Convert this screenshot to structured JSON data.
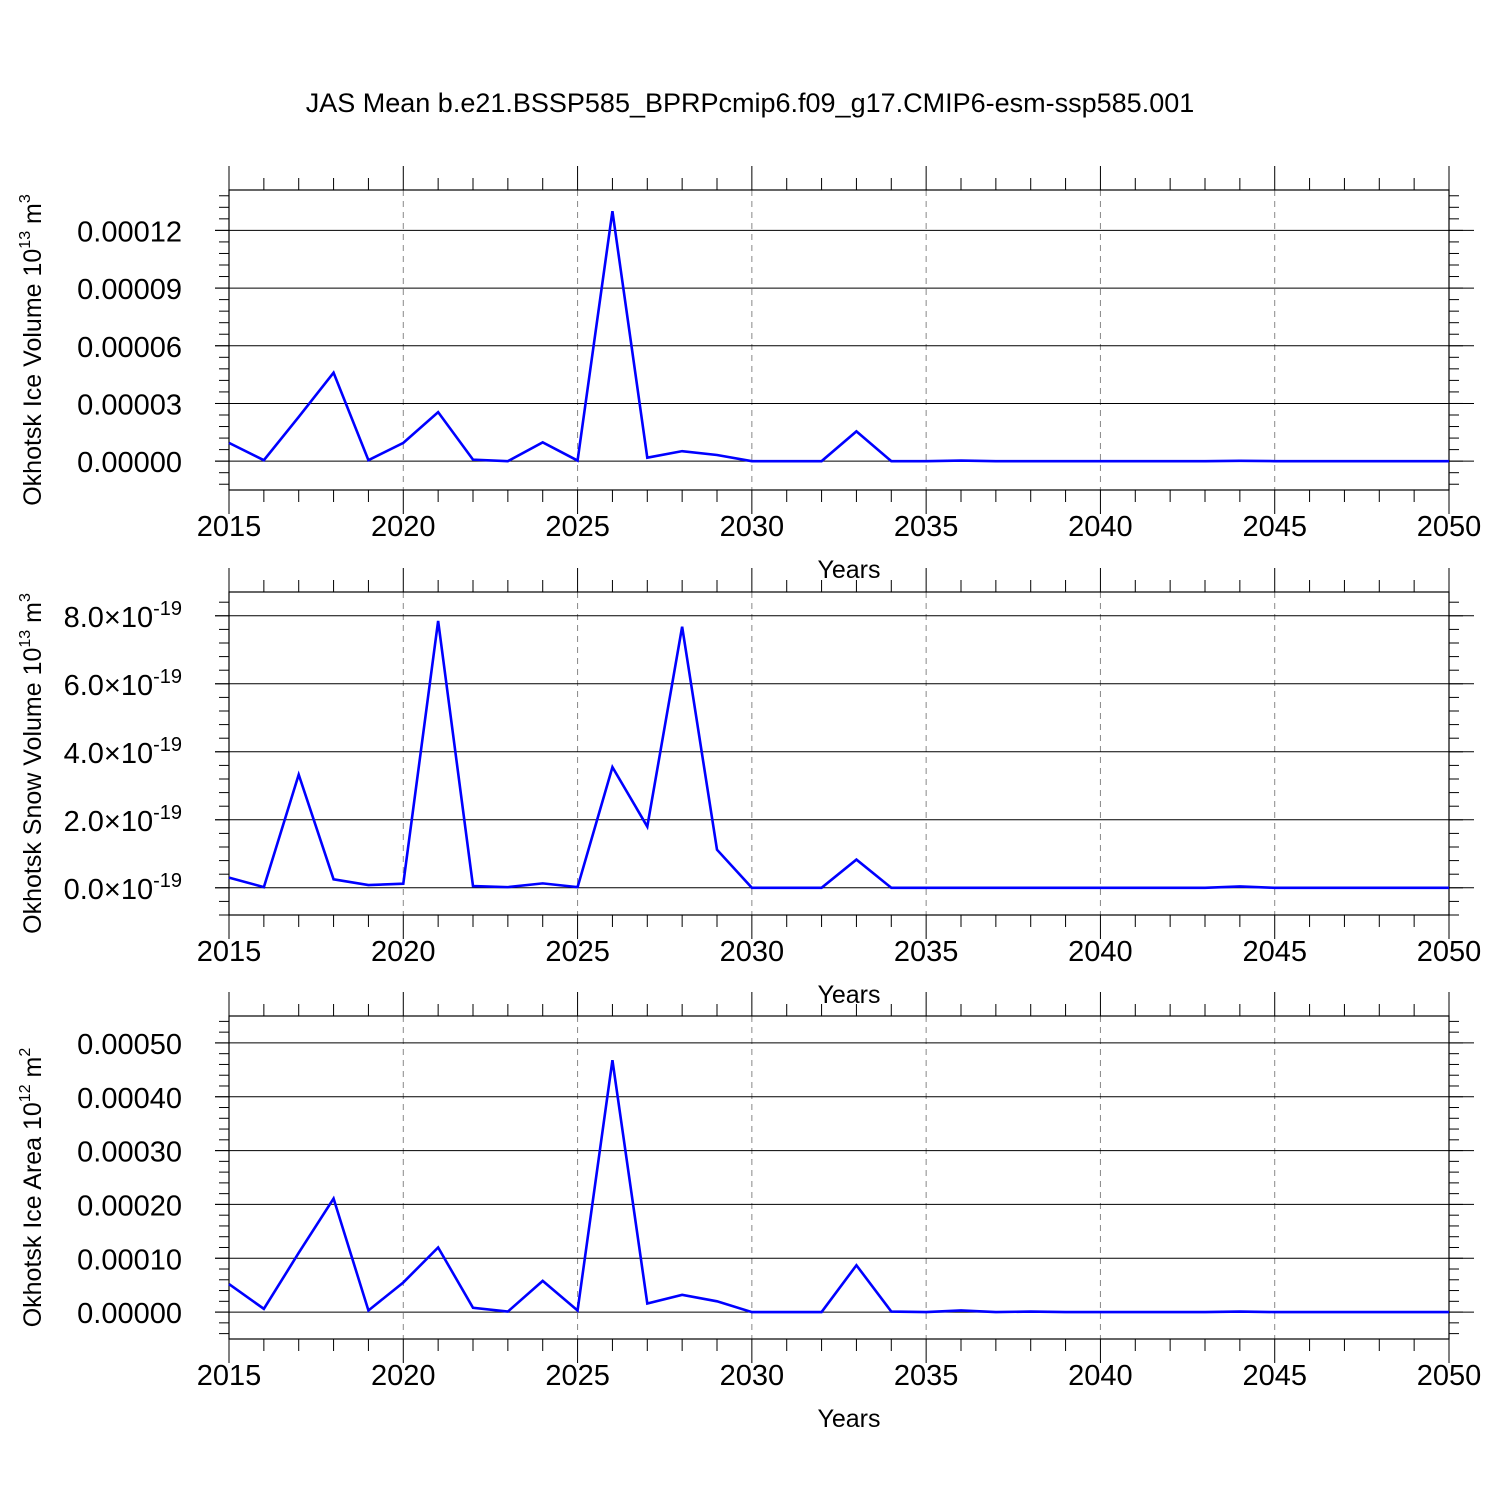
{
  "title": "JAS Mean b.e21.BSSP585_BPRPcmip6.f09_g17.CMIP6-esm-ssp585.001",
  "colors": {
    "line": "#0000ff",
    "axis": "#000000",
    "grid": "#888888"
  },
  "chart_data": [
    {
      "type": "line",
      "ylabel": "Okhotsk Ice Volume",
      "ylabel_unit_base": "10",
      "ylabel_unit_exp": "13",
      "ylabel_unit": "m",
      "ylabel_unit_pow": "3",
      "xlabel": "Years",
      "xlim": [
        2015,
        2050
      ],
      "ylim": [
        -1.5e-05,
        0.000141
      ],
      "xticks": [
        "2015",
        "2020",
        "2025",
        "2030",
        "2035",
        "2040",
        "2045",
        "2050"
      ],
      "yticks": [
        {
          "value": 0,
          "label": "0.00000"
        },
        {
          "value": 3e-05,
          "label": "0.00003"
        },
        {
          "value": 6e-05,
          "label": "0.00006"
        },
        {
          "value": 9e-05,
          "label": "0.00009"
        },
        {
          "value": 0.00012,
          "label": "0.00012"
        }
      ],
      "baseline": 0,
      "grid": "x-dashed",
      "x": [
        2015,
        2016,
        2017,
        2018,
        2019,
        2020,
        2021,
        2022,
        2023,
        2024,
        2025,
        2026,
        2027,
        2028,
        2029,
        2030,
        2031,
        2032,
        2033,
        2034,
        2035,
        2036,
        2037,
        2038,
        2039,
        2040,
        2041,
        2042,
        2043,
        2044,
        2045,
        2046,
        2047,
        2048,
        2049,
        2050
      ],
      "values": [
        9.5e-06,
        5e-07,
        2.3e-05,
        4.6e-05,
        5e-07,
        9.5e-06,
        2.55e-05,
        8e-07,
        0,
        9.8e-06,
        3e-07,
        0.00013,
        1.8e-06,
        5.2e-06,
        3.2e-06,
        0,
        0,
        0,
        1.55e-05,
        0,
        0,
        3e-07,
        0,
        0,
        0,
        0,
        0,
        0,
        0,
        2e-07,
        0,
        0,
        0,
        0,
        0,
        0
      ]
    },
    {
      "type": "line",
      "ylabel": "Okhotsk Snow Volume",
      "ylabel_unit_base": "10",
      "ylabel_unit_exp": "13",
      "ylabel_unit": "m",
      "ylabel_unit_pow": "3",
      "xlabel": "Years",
      "xlim": [
        2015,
        2050
      ],
      "ylim": [
        -0.8,
        8.7
      ],
      "y_scale_factor": "×10^-19",
      "xticks": [
        "2015",
        "2020",
        "2025",
        "2030",
        "2035",
        "2040",
        "2045",
        "2050"
      ],
      "yticks": [
        {
          "value": 0,
          "label": "0.0",
          "sci": "×10",
          "exp": "-19"
        },
        {
          "value": 2,
          "label": "2.0",
          "sci": "×10",
          "exp": "-19"
        },
        {
          "value": 4,
          "label": "4.0",
          "sci": "×10",
          "exp": "-19"
        },
        {
          "value": 6,
          "label": "6.0",
          "sci": "×10",
          "exp": "-19"
        },
        {
          "value": 8,
          "label": "8.0",
          "sci": "×10",
          "exp": "-19"
        }
      ],
      "baseline": 0,
      "grid": "x-dashed",
      "x": [
        2015,
        2016,
        2017,
        2018,
        2019,
        2020,
        2021,
        2022,
        2023,
        2024,
        2025,
        2026,
        2027,
        2028,
        2029,
        2030,
        2031,
        2032,
        2033,
        2034,
        2035,
        2036,
        2037,
        2038,
        2039,
        2040,
        2041,
        2042,
        2043,
        2044,
        2045,
        2046,
        2047,
        2048,
        2049,
        2050
      ],
      "values": [
        0.3,
        0.02,
        3.33,
        0.25,
        0.08,
        0.12,
        7.85,
        0.05,
        0.02,
        0.13,
        0.02,
        3.55,
        1.8,
        7.68,
        1.12,
        0,
        0,
        0,
        0.83,
        0,
        0,
        0,
        0,
        0,
        0,
        0,
        0,
        0,
        0,
        0.04,
        0,
        0,
        0,
        0,
        0,
        0
      ]
    },
    {
      "type": "line",
      "ylabel": "Okhotsk Ice Area",
      "ylabel_unit_base": "10",
      "ylabel_unit_exp": "12",
      "ylabel_unit": "m",
      "ylabel_unit_pow": "2",
      "xlabel": "Years",
      "xlim": [
        2015,
        2050
      ],
      "ylim": [
        -5e-05,
        0.00055
      ],
      "xticks": [
        "2015",
        "2020",
        "2025",
        "2030",
        "2035",
        "2040",
        "2045",
        "2050"
      ],
      "yticks": [
        {
          "value": 0,
          "label": "0.00000"
        },
        {
          "value": 0.0001,
          "label": "0.00010"
        },
        {
          "value": 0.0002,
          "label": "0.00020"
        },
        {
          "value": 0.0003,
          "label": "0.00030"
        },
        {
          "value": 0.0004,
          "label": "0.00040"
        },
        {
          "value": 0.0005,
          "label": "0.00050"
        }
      ],
      "baseline": 0,
      "grid": "x-dashed",
      "x": [
        2015,
        2016,
        2017,
        2018,
        2019,
        2020,
        2021,
        2022,
        2023,
        2024,
        2025,
        2026,
        2027,
        2028,
        2029,
        2030,
        2031,
        2032,
        2033,
        2034,
        2035,
        2036,
        2037,
        2038,
        2039,
        2040,
        2041,
        2042,
        2043,
        2044,
        2045,
        2046,
        2047,
        2048,
        2049,
        2050
      ],
      "values": [
        5.2e-05,
        6e-06,
        0.00011,
        0.000211,
        3e-06,
        5.5e-05,
        0.00012,
        8e-06,
        1e-06,
        5.8e-05,
        3e-06,
        0.000468,
        1.6e-05,
        3.2e-05,
        2e-05,
        0,
        0,
        0,
        8.7e-05,
        1e-06,
        0,
        3e-06,
        0,
        1e-06,
        0,
        0,
        0,
        0,
        0,
        1e-06,
        0,
        0,
        0,
        0,
        0,
        0
      ]
    }
  ]
}
